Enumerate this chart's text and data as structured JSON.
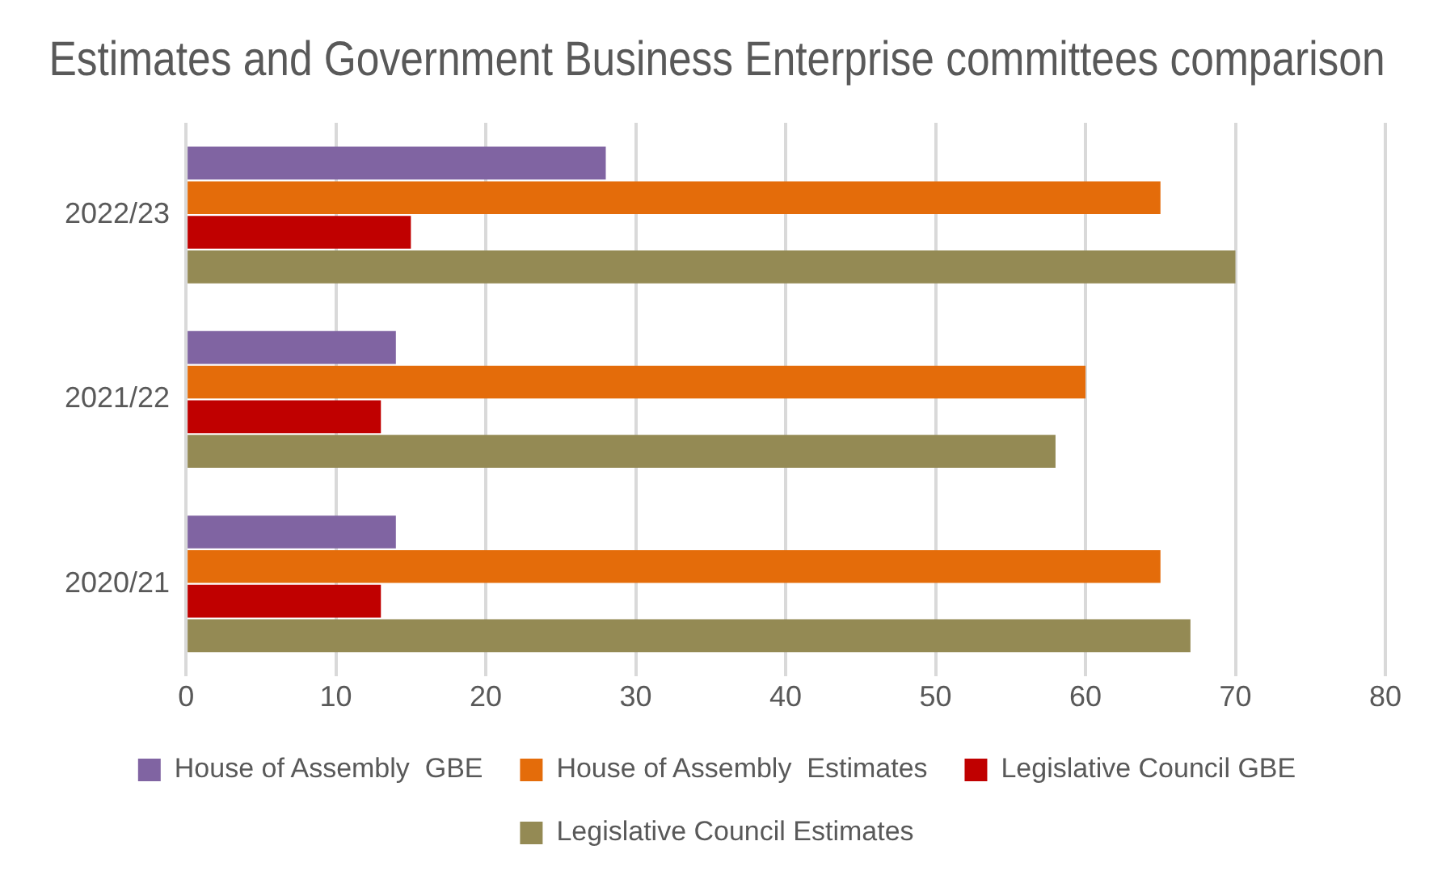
{
  "chart_data": {
    "type": "bar",
    "orientation": "horizontal",
    "title": "Estimates and Government Business Enterprise committees comparison",
    "categories": [
      "2022/23",
      "2021/22",
      "2020/21"
    ],
    "series": [
      {
        "name": "House of Assembly  GBE",
        "color": "#8064a2",
        "values": [
          28,
          14,
          14
        ]
      },
      {
        "name": "House of Assembly  Estimates",
        "color": "#e46c0a",
        "values": [
          65,
          60,
          65
        ]
      },
      {
        "name": "Legislative Council GBE",
        "color": "#c00000",
        "values": [
          15,
          13,
          13
        ]
      },
      {
        "name": "Legislative Council Estimates",
        "color": "#948a54",
        "values": [
          70,
          58,
          67
        ]
      }
    ],
    "xlim": [
      0,
      80
    ],
    "xticks": [
      0,
      10,
      20,
      30,
      40,
      50,
      60,
      70,
      80
    ],
    "grid": "x",
    "legend": "bottom"
  }
}
